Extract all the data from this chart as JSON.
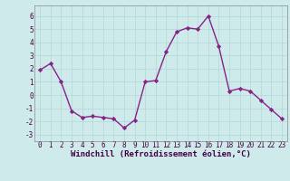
{
  "x": [
    0,
    1,
    2,
    3,
    4,
    5,
    6,
    7,
    8,
    9,
    10,
    11,
    12,
    13,
    14,
    15,
    16,
    17,
    18,
    19,
    20,
    21,
    22,
    23
  ],
  "y": [
    1.9,
    2.4,
    1.0,
    -1.2,
    -1.7,
    -1.6,
    -1.7,
    -1.8,
    -2.5,
    -1.9,
    1.0,
    1.1,
    3.3,
    4.8,
    5.1,
    5.0,
    6.0,
    3.7,
    0.3,
    0.5,
    0.3,
    -0.4,
    -1.1,
    -1.8
  ],
  "line_color": "#882288",
  "marker": "D",
  "marker_size": 2.2,
  "linewidth": 1.0,
  "xlabel": "Windchill (Refroidissement éolien,°C)",
  "xlabel_fontsize": 6.5,
  "ylim": [
    -3.5,
    6.8
  ],
  "yticks": [
    -3,
    -2,
    -1,
    0,
    1,
    2,
    3,
    4,
    5,
    6
  ],
  "xticks": [
    0,
    1,
    2,
    3,
    4,
    5,
    6,
    7,
    8,
    9,
    10,
    11,
    12,
    13,
    14,
    15,
    16,
    17,
    18,
    19,
    20,
    21,
    22,
    23
  ],
  "grid_color": "#b0d8d8",
  "background_color": "#ceeaea",
  "tick_fontsize": 5.5,
  "fig_bg": "#ceeaea"
}
